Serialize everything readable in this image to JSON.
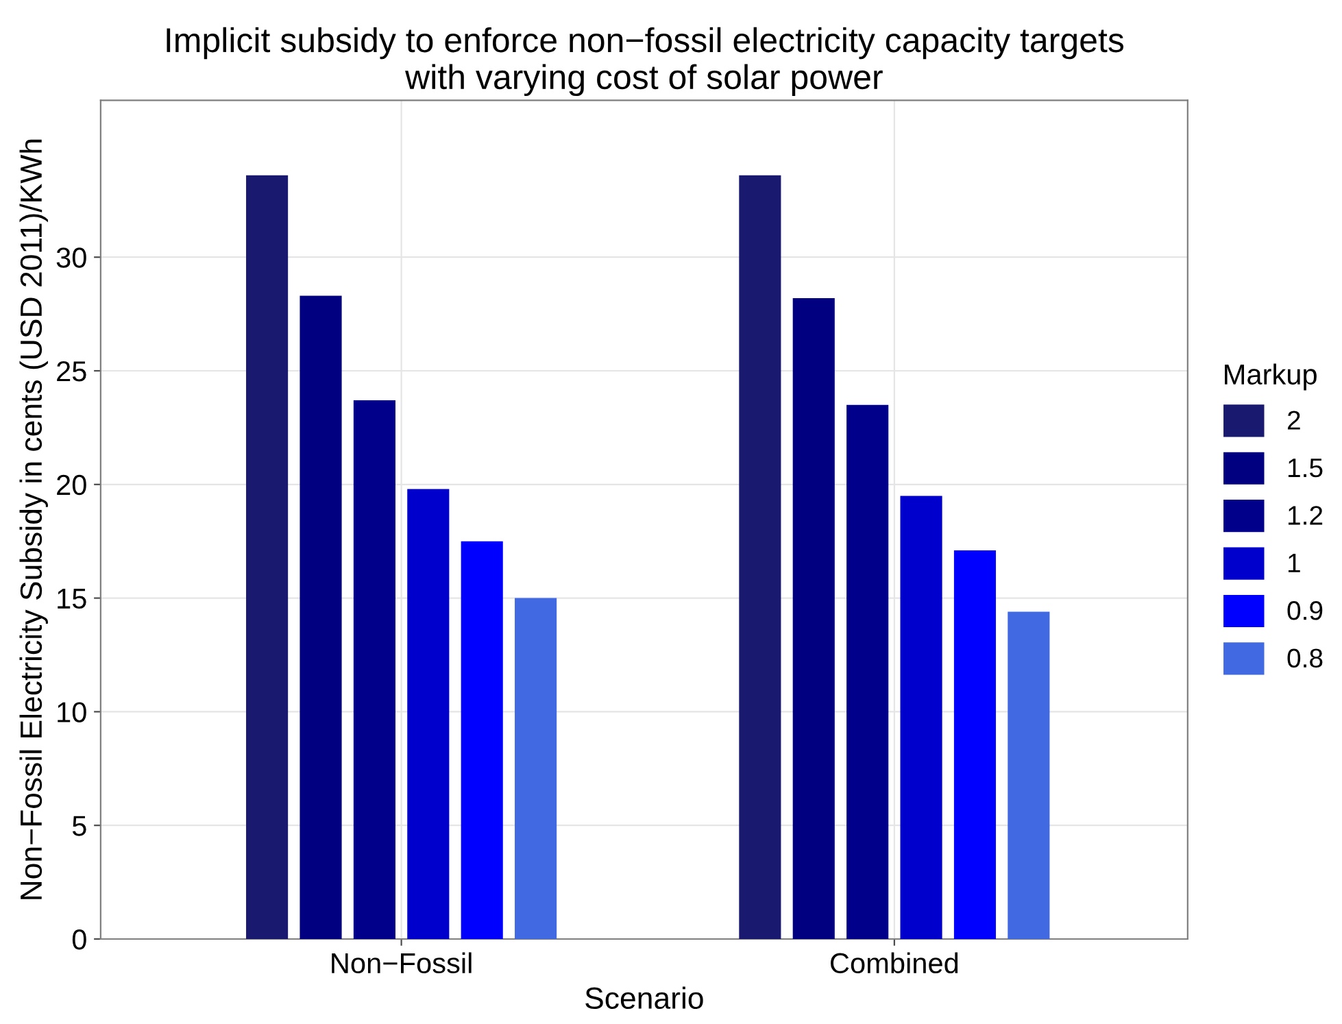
{
  "chart_data": {
    "type": "bar",
    "title": "Implicit subsidy to enforce non−fossil electricity capacity targets\nwith varying cost of solar power",
    "xlabel": "Scenario",
    "ylabel": "Non−Fossil Electricity Subsidy in cents (USD 2011)/KWh",
    "legend_title": "Markup",
    "categories": [
      "Non−Fossil",
      "Combined"
    ],
    "series": [
      {
        "name": "2",
        "color": "#191970",
        "values": [
          33.6,
          33.6
        ]
      },
      {
        "name": "1.5",
        "color": "#000080",
        "values": [
          28.3,
          28.2
        ]
      },
      {
        "name": "1.2",
        "color": "#00008b",
        "values": [
          23.7,
          23.5
        ]
      },
      {
        "name": "1",
        "color": "#0000cd",
        "values": [
          19.8,
          19.5
        ]
      },
      {
        "name": "0.9",
        "color": "#0000ff",
        "values": [
          17.5,
          17.1
        ]
      },
      {
        "name": "0.8",
        "color": "#4169e1",
        "values": [
          15.0,
          14.4
        ]
      }
    ],
    "ylim": [
      0,
      36.9
    ],
    "yticks": [
      0,
      5,
      10,
      15,
      20,
      25,
      30
    ],
    "grid": true,
    "legend": "right"
  }
}
